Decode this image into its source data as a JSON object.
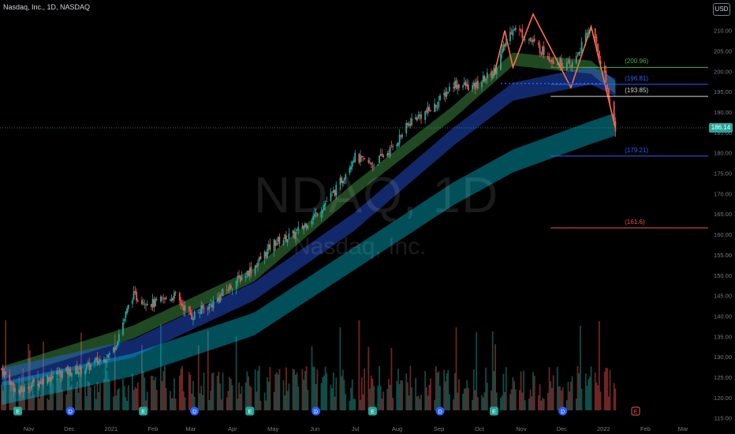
{
  "header": {
    "title": "Nasdaq, Inc., 1D, NASDAQ"
  },
  "currency_button": "USD",
  "watermark": {
    "symbol": "NDAQ, 1D",
    "name": "Nasdaq, Inc."
  },
  "last_price": {
    "value": 186.14,
    "label": "186.14",
    "color": "#26a69a"
  },
  "colors": {
    "up": "#26a69a",
    "down": "#ef5350",
    "ema_fast": "#4caf50",
    "ema_mid": "#2962ff",
    "ema_slow": "#00bcd4",
    "pattern": "#ff7043",
    "level_green": "#4caf50",
    "level_blue": "#2962ff",
    "level_red": "#ef5350",
    "level_white": "#d1d4dc"
  },
  "levels": [
    {
      "label": "(200.96)",
      "value": 200.96,
      "color": "#4caf50"
    },
    {
      "label": "(196.81)",
      "value": 196.81,
      "color": "#2962ff"
    },
    {
      "label": "(193.85)",
      "value": 193.85,
      "color": "#d1d4dc"
    },
    {
      "label": "(179.21)",
      "value": 179.21,
      "color": "#2962ff"
    },
    {
      "label": "(161.6)",
      "value": 161.6,
      "color": "#ef5350"
    }
  ],
  "event_markers": [
    {
      "label": "E",
      "x": "2020-11-01"
    },
    {
      "label": "D",
      "x": "2020-12-10"
    },
    {
      "label": "E",
      "x": "2021-02-02"
    },
    {
      "label": "D",
      "x": "2021-03-12"
    },
    {
      "label": "E",
      "x": "2021-04-22"
    },
    {
      "label": "D",
      "x": "2021-06-10"
    },
    {
      "label": "E",
      "x": "2021-07-22"
    },
    {
      "label": "D",
      "x": "2021-09-10"
    },
    {
      "label": "E",
      "x": "2021-10-20"
    },
    {
      "label": "D",
      "x": "2021-12-10"
    },
    {
      "label": "E",
      "x": "2022-02-02",
      "upcoming": true
    }
  ],
  "chart_data": {
    "type": "candlestick",
    "title": "Nasdaq, Inc., 1D, NASDAQ",
    "x_axis": {
      "ticks": [
        "Nov",
        "Dec",
        "2021",
        "Feb",
        "Mar",
        "Apr",
        "May",
        "Jun",
        "Jul",
        "Aug",
        "Sep",
        "Oct",
        "Nov",
        "Dec",
        "2022",
        "Feb",
        "Mar"
      ],
      "range": [
        "2020-10-20",
        "2022-03-26"
      ]
    },
    "y_axis": {
      "ticks": [
        210,
        205,
        200,
        195,
        190,
        185,
        180,
        175,
        170,
        165,
        160,
        155,
        150,
        145,
        140,
        135,
        130,
        125,
        120,
        115
      ],
      "range": [
        113,
        214
      ]
    },
    "price_path": [
      [
        "2020-10-20",
        127
      ],
      [
        "2020-11-01",
        121
      ],
      [
        "2020-11-10",
        123
      ],
      [
        "2020-12-01",
        126
      ],
      [
        "2020-12-20",
        127
      ],
      [
        "2021-01-10",
        131
      ],
      [
        "2021-01-25",
        145
      ],
      [
        "2021-02-10",
        143
      ],
      [
        "2021-02-25",
        145
      ],
      [
        "2021-03-10",
        140
      ],
      [
        "2021-03-25",
        143
      ],
      [
        "2021-04-10",
        148
      ],
      [
        "2021-04-25",
        152
      ],
      [
        "2021-05-10",
        158
      ],
      [
        "2021-05-25",
        160
      ],
      [
        "2021-06-10",
        165
      ],
      [
        "2021-06-25",
        171
      ],
      [
        "2021-07-08",
        179
      ],
      [
        "2021-07-22",
        177
      ],
      [
        "2021-08-05",
        181
      ],
      [
        "2021-08-20",
        188
      ],
      [
        "2021-09-05",
        191
      ],
      [
        "2021-09-20",
        197
      ],
      [
        "2021-10-05",
        196
      ],
      [
        "2021-10-20",
        200
      ],
      [
        "2021-11-03",
        211
      ],
      [
        "2021-11-18",
        207
      ],
      [
        "2021-12-02",
        203
      ],
      [
        "2021-12-16",
        201
      ],
      [
        "2021-12-31",
        211
      ],
      [
        "2022-01-10",
        199
      ],
      [
        "2022-01-18",
        186.14
      ]
    ],
    "moving_average_ribbons": [
      {
        "name": "EMA fast",
        "color": "#4caf50",
        "points": [
          [
            "2020-10-20",
            126
          ],
          [
            "2021-01-25",
            136
          ],
          [
            "2021-04-25",
            150
          ],
          [
            "2021-07-08",
            171
          ],
          [
            "2021-09-20",
            190
          ],
          [
            "2021-11-03",
            203
          ],
          [
            "2021-12-31",
            201
          ],
          [
            "2022-01-18",
            196
          ]
        ]
      },
      {
        "name": "EMA mid",
        "color": "#2962ff",
        "points": [
          [
            "2020-10-20",
            125
          ],
          [
            "2021-01-25",
            132
          ],
          [
            "2021-04-25",
            146
          ],
          [
            "2021-07-08",
            163
          ],
          [
            "2021-09-20",
            184
          ],
          [
            "2021-11-03",
            195
          ],
          [
            "2021-12-31",
            199
          ],
          [
            "2022-01-18",
            196
          ]
        ]
      },
      {
        "name": "EMA slow",
        "color": "#00bcd4",
        "points": [
          [
            "2020-10-20",
            121
          ],
          [
            "2021-01-25",
            128
          ],
          [
            "2021-04-25",
            138
          ],
          [
            "2021-07-08",
            154
          ],
          [
            "2021-09-20",
            170
          ],
          [
            "2021-11-03",
            178
          ],
          [
            "2021-12-31",
            185
          ],
          [
            "2022-01-18",
            187
          ]
        ]
      }
    ],
    "pattern_line": [
      [
        "2021-10-20",
        199
      ],
      [
        "2021-10-28",
        210
      ],
      [
        "2021-11-03",
        201
      ],
      [
        "2021-11-18",
        214
      ],
      [
        "2021-12-02",
        205
      ],
      [
        "2021-12-16",
        196
      ],
      [
        "2021-12-31",
        211
      ],
      [
        "2022-01-18",
        186
      ]
    ],
    "dotted_level": {
      "value": 197,
      "from": "2021-10-25",
      "to": "2022-01-10"
    }
  }
}
